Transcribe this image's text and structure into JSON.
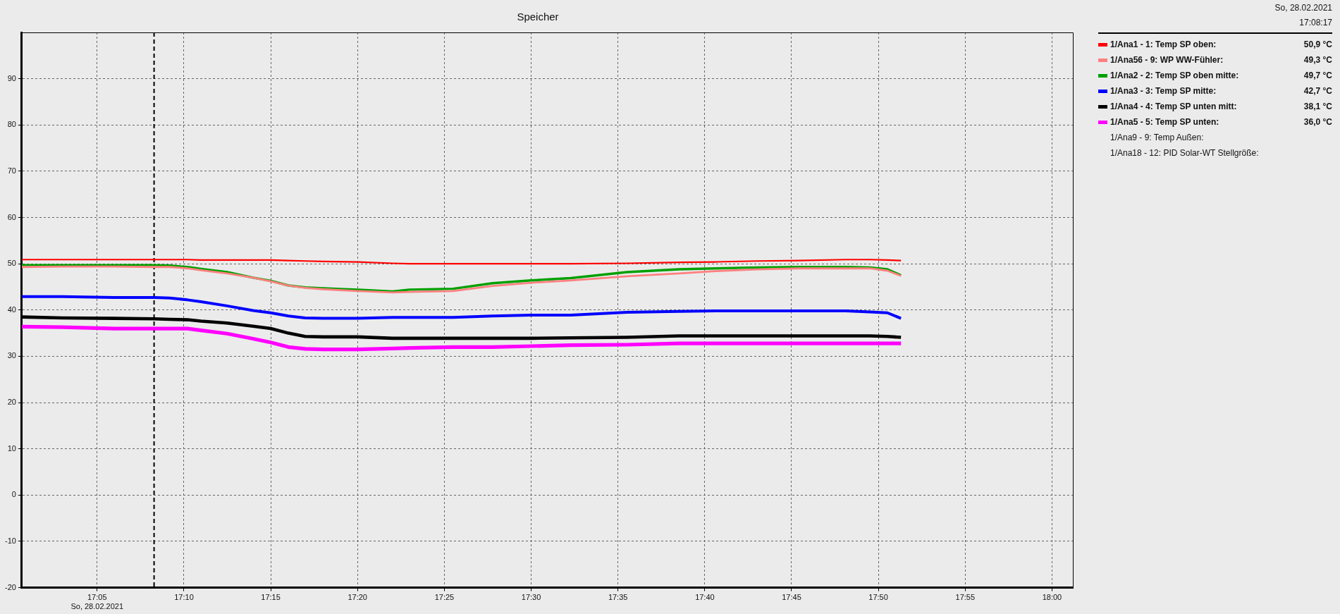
{
  "chart_data": {
    "type": "line",
    "title": "Speicher",
    "xlim": [
      17.011,
      18.02
    ],
    "ylim": [
      -20,
      100
    ],
    "xticks": [
      {
        "value": 17.0833,
        "label": "17:05\nSo, 28.02.2021"
      },
      {
        "value": 17.1667,
        "label": "17:10"
      },
      {
        "value": 17.25,
        "label": "17:15"
      },
      {
        "value": 17.3333,
        "label": "17:20"
      },
      {
        "value": 17.4167,
        "label": "17:25"
      },
      {
        "value": 17.5,
        "label": "17:30"
      },
      {
        "value": 17.5833,
        "label": "17:35"
      },
      {
        "value": 17.6667,
        "label": "17:40"
      },
      {
        "value": 17.75,
        "label": "17:45"
      },
      {
        "value": 17.8333,
        "label": "17:50"
      },
      {
        "value": 17.9167,
        "label": "17:55"
      },
      {
        "value": 18.0,
        "label": "18:00"
      }
    ],
    "yticks": [
      -20,
      -10,
      0,
      10,
      20,
      30,
      40,
      50,
      60,
      70,
      80,
      90
    ],
    "x": [
      17.011,
      17.05,
      17.1,
      17.138,
      17.153,
      17.17,
      17.183,
      17.208,
      17.233,
      17.25,
      17.267,
      17.283,
      17.3,
      17.333,
      17.367,
      17.383,
      17.425,
      17.463,
      17.5,
      17.538,
      17.592,
      17.642,
      17.677,
      17.717,
      17.757,
      17.802,
      17.825,
      17.842,
      17.855
    ],
    "series": [
      {
        "name": "1/Ana1 - 1: Temp SP oben:",
        "color": "#ff0000",
        "values": [
          50.9,
          50.9,
          50.9,
          50.9,
          50.9,
          50.9,
          50.8,
          50.8,
          50.8,
          50.8,
          50.7,
          50.6,
          50.5,
          50.4,
          50.1,
          50.0,
          50.0,
          50.0,
          50.0,
          50.0,
          50.1,
          50.3,
          50.4,
          50.6,
          50.7,
          50.9,
          50.9,
          50.8,
          50.7
        ]
      },
      {
        "name": "1/Ana56 - 9: WP WW-Fühler:",
        "color": "#ff8080",
        "values": [
          49.3,
          49.4,
          49.4,
          49.3,
          49.3,
          49.0,
          48.6,
          47.9,
          47.0,
          46.2,
          45.3,
          44.8,
          44.5,
          44.1,
          43.8,
          43.9,
          44.1,
          45.2,
          45.9,
          46.4,
          47.3,
          47.9,
          48.4,
          48.8,
          49.0,
          49.0,
          49.0,
          48.5,
          47.4
        ]
      },
      {
        "name": "1/Ana2 - 2: Temp SP oben mitte:",
        "color": "#00a000",
        "values": [
          49.7,
          49.7,
          49.7,
          49.7,
          49.6,
          49.3,
          48.9,
          48.2,
          47.0,
          46.3,
          45.3,
          44.9,
          44.7,
          44.4,
          44.0,
          44.4,
          44.6,
          45.8,
          46.4,
          46.9,
          48.2,
          48.8,
          49.0,
          49.2,
          49.3,
          49.3,
          49.2,
          48.8,
          47.5
        ]
      },
      {
        "name": "1/Ana3 - 3: Temp SP mitte:",
        "color": "#0000ff",
        "values": [
          42.9,
          42.9,
          42.7,
          42.7,
          42.6,
          42.2,
          41.8,
          40.9,
          39.9,
          39.4,
          38.7,
          38.3,
          38.2,
          38.2,
          38.4,
          38.4,
          38.4,
          38.7,
          38.9,
          38.9,
          39.5,
          39.7,
          39.8,
          39.8,
          39.8,
          39.8,
          39.6,
          39.4,
          38.2
        ]
      },
      {
        "name": "1/Ana4 - 4: Temp SP unten mitt:",
        "color": "#000000",
        "values": [
          38.5,
          38.3,
          38.2,
          38.1,
          38.0,
          37.9,
          37.6,
          37.2,
          36.5,
          36.0,
          35.0,
          34.3,
          34.2,
          34.2,
          33.9,
          33.9,
          33.9,
          33.9,
          33.9,
          34.0,
          34.1,
          34.4,
          34.4,
          34.4,
          34.4,
          34.4,
          34.4,
          34.3,
          34.1
        ]
      },
      {
        "name": "1/Ana5 - 5: Temp SP unten:",
        "color": "#ff00ff",
        "values": [
          36.4,
          36.3,
          36.0,
          36.0,
          36.0,
          36.0,
          35.6,
          34.9,
          33.8,
          33.0,
          32.0,
          31.6,
          31.5,
          31.5,
          31.7,
          31.8,
          32.0,
          32.0,
          32.2,
          32.4,
          32.5,
          32.8,
          32.8,
          32.8,
          32.8,
          32.8,
          32.8,
          32.8,
          32.8
        ]
      },
      {
        "name": "1/Ana9 - 9: Temp Außen:",
        "values": [
          null,
          null,
          null,
          null,
          null,
          null,
          null,
          null,
          null,
          null,
          null,
          null,
          null,
          null,
          null,
          null,
          null,
          null,
          null,
          null,
          null,
          null,
          null,
          null,
          null,
          null,
          null,
          null,
          null
        ]
      },
      {
        "name": "1/Ana18 - 12: PID Solar-WT Stellgröße:",
        "values": [
          null,
          null,
          null,
          null,
          null,
          null,
          null,
          null,
          null,
          null,
          null,
          null,
          null,
          null,
          null,
          null,
          null,
          null,
          null,
          null,
          null,
          null,
          null,
          null,
          null,
          null,
          null,
          null,
          null
        ]
      }
    ],
    "ref_lines": [
      {
        "axis": "x",
        "value": 17.138,
        "color": "#000000",
        "line_style": "dashed"
      }
    ],
    "annotations": [
      "So, 28.02.2021",
      "17:08:17",
      "50,9 °C",
      "49,3 °C",
      "49,7 °C",
      "42,7 °C",
      "38,1 °C",
      "36,0 °C"
    ],
    "grid": true,
    "legend": "right",
    "marker": "none",
    "line_style": "solid"
  }
}
